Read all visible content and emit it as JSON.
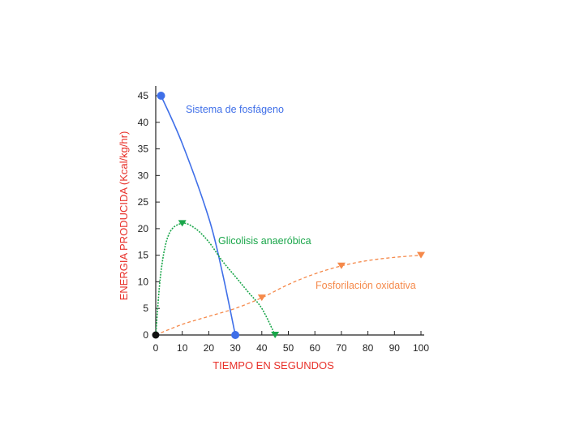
{
  "chart_data": {
    "type": "line",
    "title": "",
    "xlabel": "TIEMPO EN SEGUNDOS",
    "ylabel": "ENERGIA PRODUCIDA (Kcal/kg/hr)",
    "axis_label_color": "#e8312a",
    "xlim": [
      0,
      100
    ],
    "ylim": [
      0,
      45
    ],
    "x_ticks": [
      "0",
      "10",
      "20",
      "30",
      "40",
      "50",
      "60",
      "70",
      "80",
      "90",
      "100"
    ],
    "y_ticks": [
      "0",
      "5",
      "10",
      "15",
      "20",
      "25",
      "30",
      "35",
      "40",
      "45"
    ],
    "grid": false,
    "series": [
      {
        "name": "Sistema de fosfágeno",
        "color": "#3f6fe8",
        "marker": "circle",
        "x": [
          2,
          10,
          20,
          25,
          30
        ],
        "y": [
          45,
          36,
          22,
          12,
          0
        ],
        "marker_points": [
          [
            2,
            45
          ],
          [
            30,
            0
          ]
        ]
      },
      {
        "name": "Glicolisis anaeróbica",
        "color": "#1aa64a",
        "marker": "triangle-down",
        "x": [
          0,
          2,
          5,
          10,
          15,
          20,
          25,
          30,
          35,
          40,
          45
        ],
        "y": [
          0,
          12,
          19,
          21,
          20,
          17.5,
          14,
          11,
          8,
          5,
          0
        ],
        "marker_points": [
          [
            10,
            21
          ],
          [
            45,
            0
          ]
        ]
      },
      {
        "name": "Fosforilación oxidativa",
        "color": "#f5894a",
        "marker": "triangle-down",
        "x": [
          0,
          10,
          20,
          30,
          40,
          50,
          60,
          70,
          80,
          90,
          100
        ],
        "y": [
          0,
          2,
          3.5,
          5,
          7,
          9.5,
          11.5,
          13,
          14,
          14.6,
          15
        ],
        "marker_points": [
          [
            40,
            7
          ],
          [
            70,
            13
          ],
          [
            100,
            15
          ]
        ]
      }
    ]
  }
}
